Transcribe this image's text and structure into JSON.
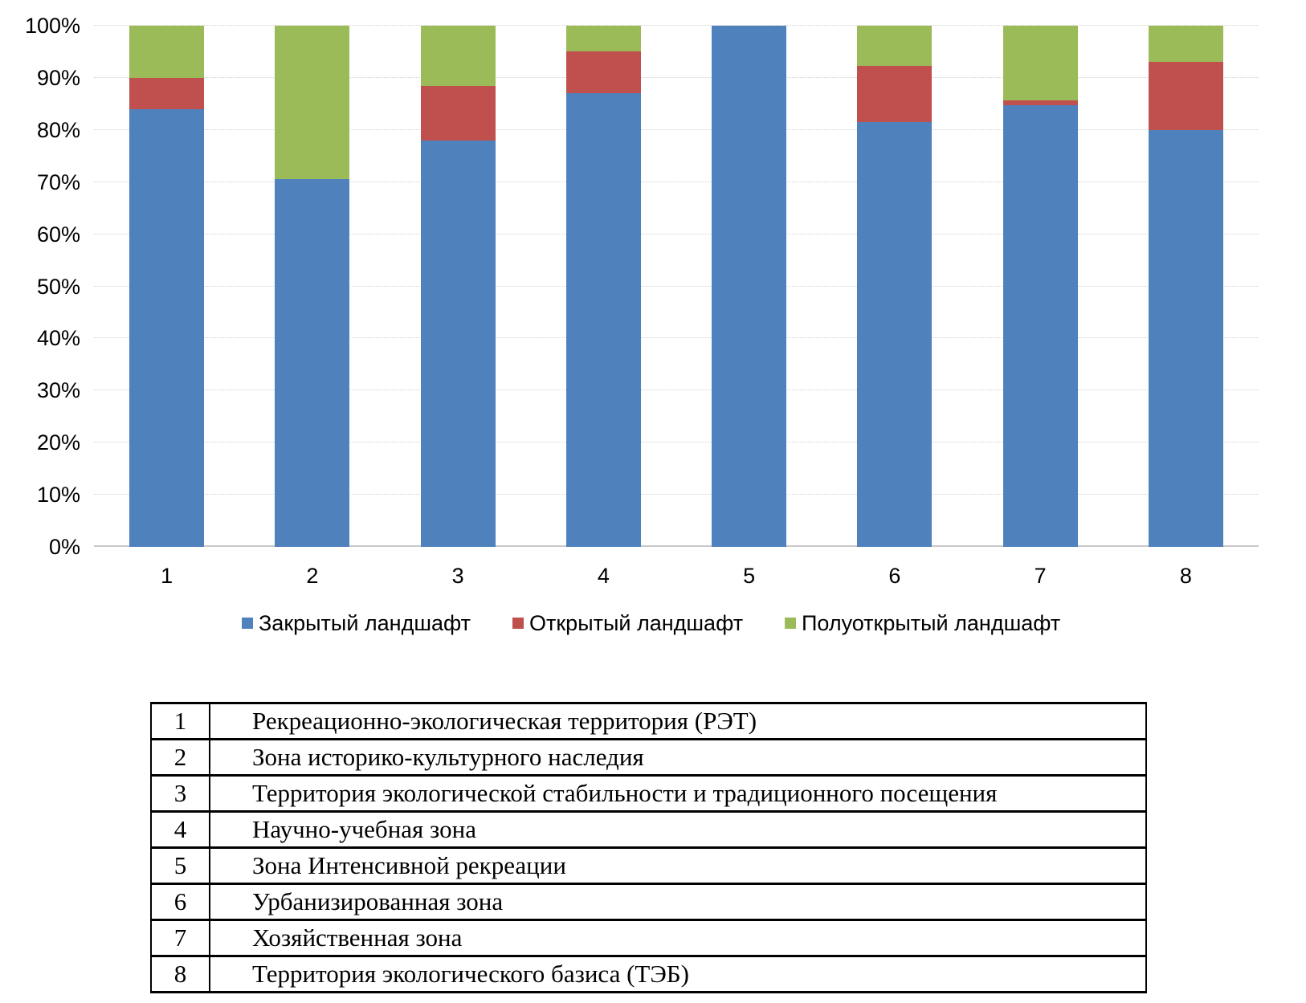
{
  "chart_data": {
    "type": "bar",
    "stacked": true,
    "percent": true,
    "title": "",
    "xlabel": "",
    "ylabel": "",
    "ylim": [
      0,
      100
    ],
    "grid": true,
    "legend_position": "bottom",
    "categories": [
      "1",
      "2",
      "3",
      "4",
      "5",
      "6",
      "7",
      "8"
    ],
    "ytick_labels": [
      "0%",
      "10%",
      "20%",
      "30%",
      "40%",
      "50%",
      "60%",
      "70%",
      "80%",
      "90%",
      "100%"
    ],
    "series": [
      {
        "name": "Закрытый ландшафт",
        "color": "#4F81BD",
        "values": [
          84,
          70.5,
          78,
          87,
          100,
          81.5,
          84.8,
          80
        ]
      },
      {
        "name": "Открытый ландшафт",
        "color": "#C0504D",
        "values": [
          6,
          0,
          10.5,
          8,
          0,
          10.8,
          0.8,
          13
        ]
      },
      {
        "name": "Полуоткрытый ландшафт",
        "color": "#9BBB59",
        "values": [
          10,
          29.5,
          11.5,
          5,
          0,
          7.7,
          14.4,
          7
        ]
      }
    ]
  },
  "colors": {
    "closed_landscape": "#4F81BD",
    "open_landscape": "#C0504D",
    "semi_open_landscape": "#9BBB59",
    "gridline": "#d2d2d2",
    "axis_line": "#c9c9c9",
    "table_border": "#000000"
  },
  "table": {
    "rows": [
      {
        "num": "1",
        "label": "Рекреационно-экологическая территория (РЭТ)"
      },
      {
        "num": "2",
        "label": "Зона историко-культурного наследия"
      },
      {
        "num": "3",
        "label": "Территория экологической стабильности и традиционного посещения"
      },
      {
        "num": "4",
        "label": "Научно-учебная зона"
      },
      {
        "num": "5",
        "label": "Зона Интенсивной рекреации"
      },
      {
        "num": "6",
        "label": "Урбанизированная зона"
      },
      {
        "num": "7",
        "label": "Хозяйственная зона"
      },
      {
        "num": "8",
        "label": "Территория экологического базиса (ТЭБ)"
      }
    ]
  }
}
